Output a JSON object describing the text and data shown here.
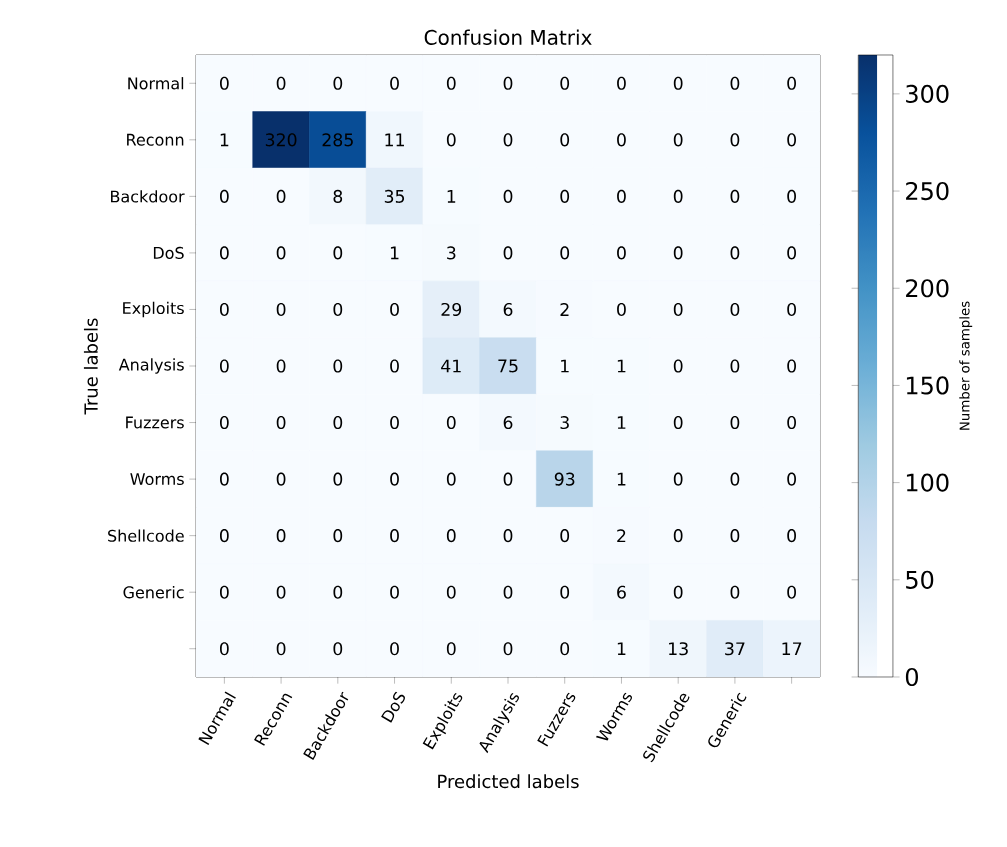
{
  "chart_data": {
    "type": "heatmap",
    "title": "Confusion Matrix",
    "xlabel": "Predicted labels",
    "ylabel": "True labels",
    "clabel": "Number of samples",
    "categories": [
      "Normal",
      "Reconn",
      "Backdoor",
      "DoS",
      "Exploits",
      "Analysis",
      "Fuzzers",
      "Worms",
      "Shellcode",
      "Generic",
      null
    ],
    "y_categories": [
      "Normal",
      "Reconn",
      "Backdoor",
      "DoS",
      "Exploits",
      "Analysis",
      "Fuzzers",
      "Worms",
      "Shellcode",
      "Generic",
      null
    ],
    "cells": [
      [
        0,
        0,
        0,
        0,
        0,
        0,
        0,
        0,
        0,
        0,
        0
      ],
      [
        1,
        320,
        285,
        11,
        0,
        0,
        0,
        0,
        0,
        0,
        0
      ],
      [
        0,
        0,
        8,
        35,
        1,
        0,
        0,
        0,
        0,
        0,
        0
      ],
      [
        0,
        0,
        0,
        1,
        3,
        0,
        0,
        0,
        0,
        0,
        0
      ],
      [
        0,
        0,
        0,
        0,
        29,
        6,
        2,
        0,
        0,
        0,
        0
      ],
      [
        0,
        0,
        0,
        0,
        41,
        75,
        1,
        1,
        0,
        0,
        0
      ],
      [
        0,
        0,
        0,
        0,
        0,
        6,
        3,
        1,
        0,
        0,
        0
      ],
      [
        0,
        0,
        0,
        0,
        0,
        0,
        93,
        1,
        0,
        0,
        0
      ],
      [
        0,
        0,
        0,
        0,
        0,
        0,
        0,
        2,
        0,
        0,
        0
      ],
      [
        0,
        0,
        0,
        0,
        0,
        0,
        0,
        6,
        0,
        0,
        0
      ],
      [
        0,
        0,
        0,
        0,
        0,
        0,
        0,
        1,
        13,
        37,
        17
      ]
    ],
    "clim": [
      0,
      320
    ],
    "cticks": [
      0,
      50,
      100,
      150,
      200,
      250,
      300
    ],
    "data_labels": true
  }
}
